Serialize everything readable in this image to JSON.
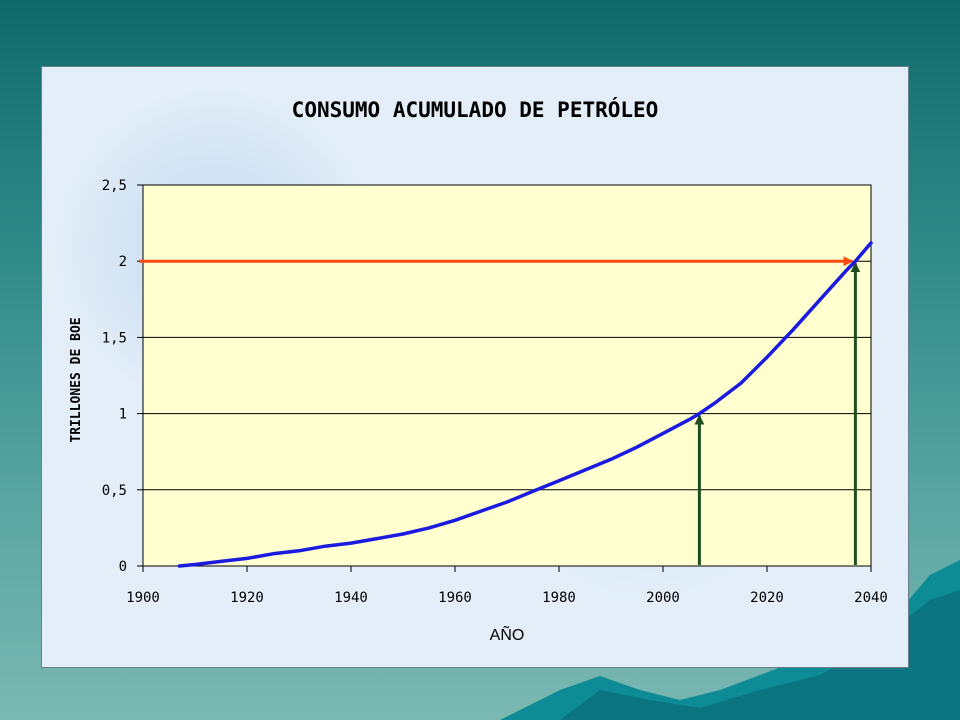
{
  "chart_data": {
    "type": "line",
    "title": "CONSUMO ACUMULADO DE  PETRÓLEO",
    "xlabel": "AÑO",
    "ylabel": "TRILLONES DE BOE",
    "xlim": [
      1900,
      2040
    ],
    "ylim": [
      0,
      2.5
    ],
    "xticks": [
      1900,
      1920,
      1940,
      1960,
      1980,
      2000,
      2020,
      2040
    ],
    "xtick_labels": [
      "1900",
      "1920",
      "1940",
      "1960",
      "1980",
      "2000",
      "2020",
      "2040"
    ],
    "yticks": [
      0,
      0.5,
      1,
      1.5,
      2,
      2.5
    ],
    "ytick_labels": [
      "0",
      "0,5",
      "1",
      "1,5",
      "2",
      "2,5"
    ],
    "grid": "horizontal",
    "series": [
      {
        "color": "#1a1ae0",
        "x": [
          1907,
          1910,
          1915,
          1920,
          1925,
          1930,
          1935,
          1940,
          1945,
          1950,
          1955,
          1960,
          1965,
          1970,
          1975,
          1980,
          1985,
          1990,
          1995,
          2000,
          2005,
          2007,
          2010,
          2015,
          2020,
          2025,
          2030,
          2035,
          2037,
          2040
        ],
        "y": [
          0,
          0.01,
          0.03,
          0.05,
          0.08,
          0.1,
          0.13,
          0.15,
          0.18,
          0.21,
          0.25,
          0.3,
          0.36,
          0.42,
          0.49,
          0.56,
          0.63,
          0.7,
          0.78,
          0.87,
          0.96,
          1.0,
          1.07,
          1.2,
          1.37,
          1.55,
          1.74,
          1.93,
          2.0,
          2.12
        ]
      }
    ],
    "annotations": [
      {
        "type": "horizontal-arrow",
        "y": 2.0,
        "x_from": 1900,
        "x_to": 2037,
        "color": "#ff4a12"
      },
      {
        "type": "vertical-arrow",
        "x": 2007,
        "y_from": 0,
        "y_to": 1.0,
        "color": "#1f4d1f"
      },
      {
        "type": "vertical-arrow",
        "x": 2037,
        "y_from": 0,
        "y_to": 2.0,
        "color": "#1f4d1f"
      }
    ],
    "plot_background": "#ffffd0"
  }
}
